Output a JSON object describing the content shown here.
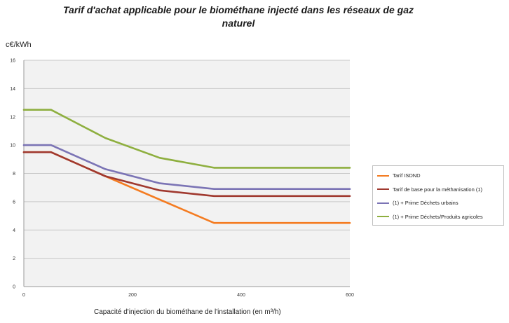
{
  "chart_data": {
    "type": "line",
    "title": "Tarif d'achat applicable pour le biométhane injecté dans les réseaux de gaz naturel",
    "ylabel": "c€/kWh",
    "xlabel": "Capacité d'injection du biométhane de l'installation (en m³/h)",
    "xlim": [
      0,
      600
    ],
    "ylim": [
      0,
      16
    ],
    "xticks": [
      0,
      200,
      400,
      600
    ],
    "yticks": [
      0,
      2,
      4,
      6,
      8,
      10,
      12,
      14,
      16
    ],
    "grid": "horizontal",
    "legend_position": "right",
    "series": [
      {
        "name": "Tarif ISDND",
        "color": "#f47b20",
        "points": [
          [
            0,
            9.5
          ],
          [
            50,
            9.5
          ],
          [
            150,
            7.8
          ],
          [
            350,
            4.5
          ],
          [
            600,
            4.5
          ]
        ]
      },
      {
        "name": "Tarif de base pour la méthanisation (1)",
        "color": "#a0392f",
        "points": [
          [
            0,
            9.5
          ],
          [
            50,
            9.5
          ],
          [
            150,
            7.8
          ],
          [
            250,
            6.8
          ],
          [
            350,
            6.4
          ],
          [
            600,
            6.4
          ]
        ]
      },
      {
        "name": "(1) + Prime Déchets urbains",
        "color": "#7b74b5",
        "points": [
          [
            0,
            10
          ],
          [
            50,
            10
          ],
          [
            150,
            8.3
          ],
          [
            250,
            7.3
          ],
          [
            350,
            6.9
          ],
          [
            600,
            6.9
          ]
        ]
      },
      {
        "name": "(1) + Prime Déchets/Produits agricoles",
        "color": "#8eaf3f",
        "points": [
          [
            0,
            12.5
          ],
          [
            50,
            12.5
          ],
          [
            150,
            10.5
          ],
          [
            250,
            9.1
          ],
          [
            350,
            8.4
          ],
          [
            600,
            8.4
          ]
        ]
      }
    ]
  }
}
